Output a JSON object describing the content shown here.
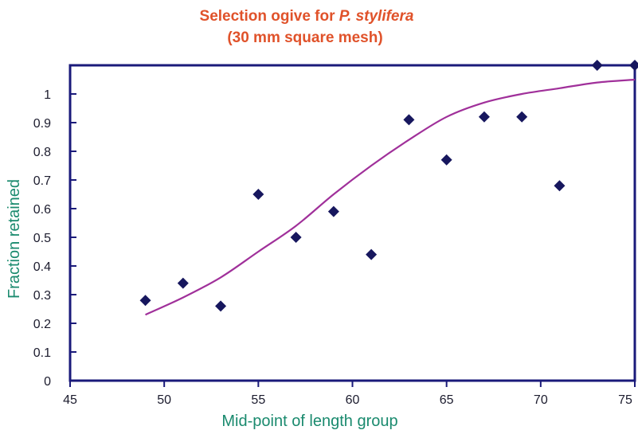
{
  "chart_data": {
    "type": "scatter",
    "title_line1": "Selection ogive for ",
    "title_species": "P. stylifera",
    "title_line2": "(30 mm square mesh)",
    "xlabel": "Mid-point of length group",
    "ylabel": "Fraction retained",
    "xlim": [
      45,
      75
    ],
    "ylim": [
      0,
      1.1
    ],
    "x_ticks": [
      45,
      50,
      55,
      60,
      65,
      70,
      75
    ],
    "y_ticks": [
      0,
      0.1,
      0.2,
      0.3,
      0.4,
      0.5,
      0.6,
      0.7,
      0.8,
      0.9,
      1
    ],
    "y_tick_labels": [
      "0",
      "0.1",
      "0.2",
      "0.3",
      "0.4",
      "0.5",
      "0.6",
      "0.7",
      "0.8",
      "0.9",
      "1"
    ],
    "grid": false,
    "series": [
      {
        "points": [
          {
            "x": 49,
            "y": 0.28
          },
          {
            "x": 51,
            "y": 0.34
          },
          {
            "x": 53,
            "y": 0.26
          },
          {
            "x": 55,
            "y": 0.65
          },
          {
            "x": 57,
            "y": 0.5
          },
          {
            "x": 59,
            "y": 0.59
          },
          {
            "x": 61,
            "y": 0.44
          },
          {
            "x": 63,
            "y": 0.91
          },
          {
            "x": 65,
            "y": 0.77
          },
          {
            "x": 67,
            "y": 0.92
          },
          {
            "x": 69,
            "y": 0.92
          },
          {
            "x": 71,
            "y": 0.68
          },
          {
            "x": 73,
            "y": 1.1
          },
          {
            "x": 75,
            "y": 1.1
          }
        ]
      }
    ],
    "fitted_curve": {
      "x": [
        49,
        51,
        53,
        55,
        57,
        59,
        61,
        63,
        65,
        67,
        69,
        71,
        73,
        75
      ],
      "y": [
        0.23,
        0.29,
        0.36,
        0.45,
        0.54,
        0.65,
        0.75,
        0.84,
        0.92,
        0.97,
        1.0,
        1.02,
        1.04,
        1.05
      ]
    },
    "colors": {
      "title": "#e0522a",
      "axis_label": "#1a8a6e",
      "frame": "#1a1a7a",
      "marker": "#17175e",
      "curve": "#a0309a",
      "tick_text": "#1c1c2e"
    }
  }
}
